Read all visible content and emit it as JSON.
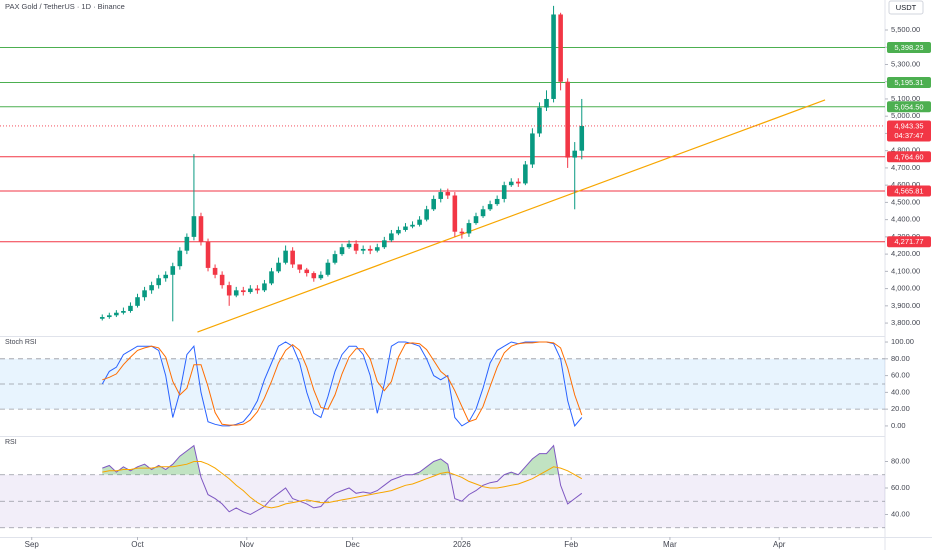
{
  "chart_data": [
    {
      "type": "candlestick",
      "title": "PAX Gold / TetherUS · 1D · Binance",
      "currency": "USDT",
      "x": [
        20,
        22,
        24,
        26,
        28,
        30,
        32,
        34,
        36,
        38,
        40,
        42,
        44,
        46,
        48,
        50,
        52,
        54,
        56,
        58,
        60,
        62,
        64,
        66,
        68,
        70,
        72,
        74,
        76,
        78,
        80,
        82,
        84,
        86,
        88,
        90,
        92,
        94,
        96,
        98,
        100,
        102,
        104,
        106,
        108,
        110,
        112,
        114,
        116,
        118,
        120,
        122,
        124,
        126,
        128,
        130,
        132,
        134,
        136,
        138,
        140,
        142,
        144,
        146,
        148,
        150,
        152,
        154,
        156
      ],
      "open": [
        3825,
        3835,
        3845,
        3860,
        3870,
        3900,
        3950,
        3990,
        4020,
        4060,
        4080,
        4130,
        4220,
        4300,
        4420,
        4270,
        4120,
        4080,
        4020,
        3960,
        3990,
        3980,
        4000,
        3990,
        4030,
        4100,
        4150,
        4220,
        4140,
        4110,
        4090,
        4060,
        4080,
        4150,
        4200,
        4240,
        4260,
        4220,
        4230,
        4220,
        4240,
        4280,
        4320,
        4340,
        4360,
        4370,
        4400,
        4460,
        4520,
        4560,
        4540,
        4330,
        4320,
        4380,
        4420,
        4460,
        4490,
        4520,
        4600,
        4620,
        4610,
        4720,
        4900,
        5050,
        5100,
        5590,
        5200,
        4760,
        4800
      ],
      "high": [
        3850,
        3860,
        3875,
        3890,
        3920,
        3970,
        4010,
        4040,
        4080,
        4100,
        4150,
        4240,
        4320,
        4780,
        4440,
        4290,
        4140,
        4100,
        4040,
        4010,
        4010,
        4020,
        4020,
        4050,
        4120,
        4180,
        4250,
        4240,
        4140,
        4120,
        4100,
        4100,
        4170,
        4220,
        4260,
        4280,
        4280,
        4250,
        4250,
        4260,
        4300,
        4340,
        4360,
        4380,
        4390,
        4420,
        4480,
        4540,
        4580,
        4580,
        4560,
        4350,
        4400,
        4440,
        4480,
        4510,
        4540,
        4620,
        4640,
        4640,
        4740,
        4930,
        5080,
        5150,
        5640,
        5600,
        5220,
        4850,
        5100
      ],
      "low": [
        3815,
        3825,
        3835,
        3850,
        3860,
        3890,
        3930,
        3970,
        4000,
        4040,
        3810,
        4110,
        4200,
        4280,
        4250,
        4100,
        4060,
        4000,
        3900,
        3950,
        3960,
        3970,
        3970,
        3980,
        4020,
        4090,
        4140,
        4120,
        4090,
        4070,
        4040,
        4050,
        4070,
        4140,
        4190,
        4230,
        4200,
        4200,
        4200,
        4210,
        4230,
        4270,
        4310,
        4330,
        4350,
        4360,
        4390,
        4450,
        4500,
        4520,
        4300,
        4290,
        4300,
        4370,
        4410,
        4450,
        4480,
        4500,
        4590,
        4590,
        4600,
        4700,
        4880,
        5030,
        5080,
        5150,
        4700,
        4460,
        4750
      ],
      "close": [
        3835,
        3845,
        3860,
        3870,
        3900,
        3950,
        3990,
        4020,
        4060,
        4080,
        4130,
        4220,
        4300,
        4420,
        4270,
        4120,
        4080,
        4020,
        3960,
        3990,
        3980,
        4000,
        3990,
        4030,
        4100,
        4150,
        4220,
        4140,
        4110,
        4090,
        4060,
        4080,
        4150,
        4200,
        4240,
        4260,
        4220,
        4230,
        4220,
        4240,
        4280,
        4320,
        4340,
        4360,
        4370,
        4400,
        4460,
        4520,
        4560,
        4540,
        4330,
        4320,
        4380,
        4420,
        4460,
        4490,
        4520,
        4600,
        4620,
        4610,
        4720,
        4900,
        5050,
        5100,
        5590,
        5200,
        4760,
        4800,
        4943.35
      ],
      "up_color": "#089981",
      "down_color": "#f23645",
      "xlim": [
        -9,
        242
      ],
      "xticks": [
        {
          "value": 0,
          "label": "Sep"
        },
        {
          "value": 30,
          "label": "Oct"
        },
        {
          "value": 61,
          "label": "Nov"
        },
        {
          "value": 91,
          "label": "Dec"
        },
        {
          "value": 122,
          "label": "2026"
        },
        {
          "value": 153,
          "label": "Feb"
        },
        {
          "value": 181,
          "label": "Mar"
        },
        {
          "value": 212,
          "label": "Apr"
        }
      ],
      "ylim": [
        3725,
        5674
      ],
      "yticks": [
        {
          "value": 3800,
          "label": "3,800.00"
        },
        {
          "value": 3900,
          "label": "3,900.00"
        },
        {
          "value": 4000,
          "label": "4,000.00"
        },
        {
          "value": 4100,
          "label": "4,100.00"
        },
        {
          "value": 4200,
          "label": "4,200.00"
        },
        {
          "value": 4300,
          "label": "4,300.00"
        },
        {
          "value": 4400,
          "label": "4,400.00"
        },
        {
          "value": 4500,
          "label": "4,500.00"
        },
        {
          "value": 4600,
          "label": "4,600.00"
        },
        {
          "value": 4700,
          "label": "4,700.00"
        },
        {
          "value": 4800,
          "label": "4,800.00"
        },
        {
          "value": 4900,
          "label": "4,900.00"
        },
        {
          "value": 5000,
          "label": "5,000.00"
        },
        {
          "value": 5100,
          "label": "5,100.00"
        },
        {
          "value": 5200,
          "label": "5,200.00"
        },
        {
          "value": 5300,
          "label": "5,300.00"
        },
        {
          "value": 5400,
          "label": "5,400.00"
        },
        {
          "value": 5500,
          "label": "5,500.00"
        }
      ],
      "hlines": [
        {
          "value": 5398.23,
          "label": "5,398.23",
          "color": "#4caf50"
        },
        {
          "value": 5195.31,
          "label": "5,195.31",
          "color": "#4caf50"
        },
        {
          "value": 5054.5,
          "label": "5,054.50",
          "color": "#4caf50"
        },
        {
          "value": 4764.6,
          "label": "4,764.60",
          "color": "#f23645"
        },
        {
          "value": 4565.81,
          "label": "4,565.81",
          "color": "#f23645"
        },
        {
          "value": 4271.77,
          "label": "4,271.77",
          "color": "#f23645"
        }
      ],
      "trendline": {
        "x": [
          47,
          225
        ],
        "y": [
          3748,
          5094
        ],
        "color": "#f7a600"
      },
      "last_price": {
        "value": 4943.35,
        "label": "4,943.35",
        "countdown": "04:37:47",
        "color": "#f23645"
      }
    },
    {
      "type": "line",
      "title": "Stoch RSI",
      "x": [
        20,
        22,
        24,
        26,
        28,
        30,
        32,
        34,
        36,
        38,
        40,
        42,
        44,
        46,
        48,
        50,
        52,
        54,
        56,
        58,
        60,
        62,
        64,
        66,
        68,
        70,
        72,
        74,
        76,
        78,
        80,
        82,
        84,
        86,
        88,
        90,
        92,
        94,
        96,
        98,
        100,
        102,
        104,
        106,
        108,
        110,
        112,
        114,
        116,
        118,
        120,
        122,
        124,
        126,
        128,
        130,
        132,
        134,
        136,
        138,
        140,
        142,
        144,
        146,
        148,
        150,
        152,
        154,
        156
      ],
      "series": [
        {
          "color": "#2962ff",
          "values": [
            50,
            65,
            70,
            85,
            90,
            95,
            95,
            95,
            90,
            60,
            10,
            40,
            85,
            95,
            40,
            5,
            2,
            0,
            0,
            2,
            5,
            15,
            30,
            55,
            75,
            95,
            100,
            95,
            75,
            40,
            15,
            10,
            35,
            65,
            85,
            95,
            95,
            85,
            60,
            15,
            50,
            95,
            100,
            100,
            98,
            95,
            80,
            60,
            55,
            60,
            10,
            0,
            5,
            20,
            45,
            75,
            90,
            95,
            100,
            98,
            100,
            100,
            100,
            100,
            98,
            80,
            30,
            0,
            10
          ]
        },
        {
          "color": "#ff6d00",
          "values": [
            55,
            58,
            62,
            73,
            82,
            90,
            93,
            95,
            93,
            82,
            53,
            37,
            45,
            73,
            73,
            47,
            16,
            2,
            1,
            1,
            2,
            7,
            17,
            33,
            53,
            75,
            90,
            97,
            90,
            70,
            43,
            22,
            20,
            37,
            62,
            82,
            92,
            92,
            80,
            53,
            42,
            53,
            82,
            98,
            99,
            98,
            91,
            78,
            65,
            58,
            42,
            23,
            5,
            8,
            23,
            47,
            70,
            87,
            95,
            98,
            99,
            99,
            100,
            100,
            99,
            93,
            69,
            37,
            13
          ]
        }
      ],
      "ylim": [
        -12,
        106
      ],
      "yticks": [
        {
          "value": 0,
          "label": "0.00"
        },
        {
          "value": 20,
          "label": "20.00"
        },
        {
          "value": 40,
          "label": "40.00"
        },
        {
          "value": 60,
          "label": "60.00"
        },
        {
          "value": 80,
          "label": "80.00"
        },
        {
          "value": 100,
          "label": "100.00"
        }
      ],
      "band": [
        20,
        80
      ],
      "band_color": "#2196f3",
      "levels": [
        80,
        50,
        20
      ]
    },
    {
      "type": "line",
      "title": "RSI",
      "x": [
        20,
        22,
        24,
        26,
        28,
        30,
        32,
        34,
        36,
        38,
        40,
        42,
        44,
        46,
        48,
        50,
        52,
        54,
        56,
        58,
        60,
        62,
        64,
        66,
        68,
        70,
        72,
        74,
        76,
        78,
        80,
        82,
        84,
        86,
        88,
        90,
        92,
        94,
        96,
        98,
        100,
        102,
        104,
        106,
        108,
        110,
        112,
        114,
        116,
        118,
        120,
        122,
        124,
        126,
        128,
        130,
        132,
        134,
        136,
        138,
        140,
        142,
        144,
        146,
        148,
        150,
        152,
        154,
        156
      ],
      "series": [
        {
          "color": "#7e57c2",
          "values": [
            75,
            77,
            72,
            76,
            73,
            76,
            78,
            74,
            77,
            74,
            78,
            84,
            88,
            92,
            68,
            55,
            52,
            48,
            42,
            45,
            42,
            40,
            43,
            46,
            52,
            56,
            60,
            52,
            50,
            48,
            45,
            46,
            52,
            56,
            58,
            60,
            56,
            57,
            56,
            58,
            62,
            66,
            68,
            70,
            70,
            72,
            76,
            80,
            82,
            78,
            52,
            50,
            55,
            58,
            62,
            64,
            65,
            70,
            72,
            70,
            76,
            82,
            86,
            86,
            92,
            62,
            48,
            52,
            56
          ]
        },
        {
          "color": "#f7a600",
          "values": [
            72,
            73,
            73,
            74,
            74,
            75,
            75,
            75,
            76,
            76,
            76,
            77,
            78,
            80,
            80,
            78,
            75,
            71,
            67,
            62,
            58,
            53,
            49,
            46,
            45,
            46,
            48,
            49,
            50,
            51,
            50,
            49,
            49,
            50,
            51,
            52,
            53,
            54,
            55,
            56,
            57,
            58,
            60,
            62,
            63,
            65,
            67,
            69,
            71,
            72,
            70,
            68,
            65,
            63,
            61,
            60,
            60,
            61,
            62,
            63,
            65,
            67,
            70,
            73,
            76,
            75,
            73,
            70,
            67
          ]
        }
      ],
      "ylim": [
        23,
        98.5
      ],
      "yticks": [
        {
          "value": 40,
          "label": "40.00"
        },
        {
          "value": 60,
          "label": "60.00"
        },
        {
          "value": 80,
          "label": "80.00"
        }
      ],
      "band": [
        30,
        70
      ],
      "band_color": "#7e57c2",
      "levels": [
        70,
        50,
        30
      ],
      "overbought_color": "#4caf50"
    }
  ]
}
